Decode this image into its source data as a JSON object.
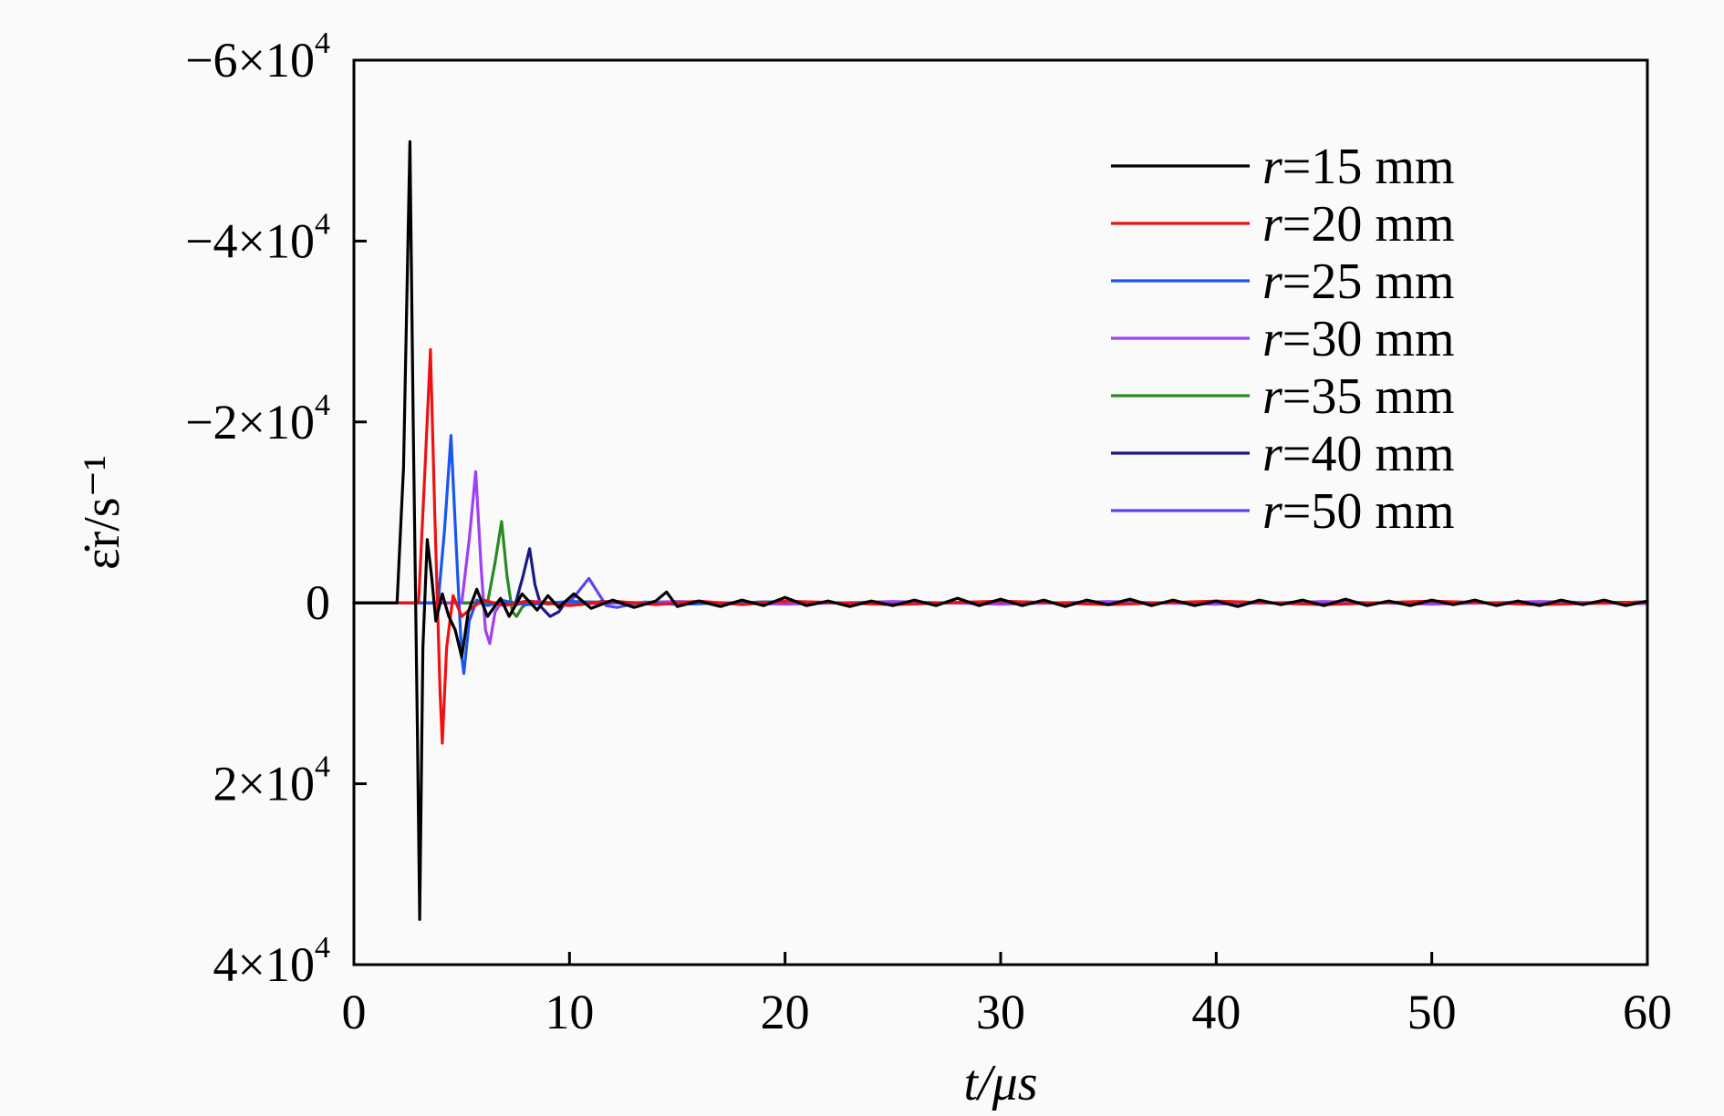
{
  "chart_data": {
    "type": "line",
    "xlabel": "t/μs",
    "ylabel": "ε̇r/s⁻¹",
    "xlim": [
      0,
      60
    ],
    "ylim": [
      40000,
      -60000
    ],
    "y_inverted": true,
    "grid": false,
    "legend_position": "top-right",
    "x_ticks": [
      "0",
      "10",
      "20",
      "30",
      "40",
      "50",
      "60"
    ],
    "y_ticks": [
      {
        "value": -60000,
        "mantissa": "−6×10",
        "exp": "4"
      },
      {
        "value": -40000,
        "mantissa": "−4×10",
        "exp": "4"
      },
      {
        "value": -20000,
        "mantissa": "−2×10",
        "exp": "4"
      },
      {
        "value": 0,
        "mantissa": "0",
        "exp": ""
      },
      {
        "value": 20000,
        "mantissa": "2×10",
        "exp": "4"
      },
      {
        "value": 40000,
        "mantissa": "4×10",
        "exp": "4"
      }
    ],
    "series": [
      {
        "name": "r=15 mm",
        "r_value": "r",
        "rest": "=15 mm",
        "color": "#000000",
        "points": [
          [
            0,
            0
          ],
          [
            2.0,
            0
          ],
          [
            2.3,
            -15000
          ],
          [
            2.6,
            -51000
          ],
          [
            2.75,
            -20000
          ],
          [
            2.95,
            15000
          ],
          [
            3.05,
            35000
          ],
          [
            3.2,
            5000
          ],
          [
            3.4,
            -7000
          ],
          [
            3.6,
            -3000
          ],
          [
            3.8,
            2000
          ],
          [
            4.1,
            -1000
          ],
          [
            4.4,
            1500
          ],
          [
            4.7,
            3000
          ],
          [
            5.0,
            6000
          ],
          [
            5.3,
            1000
          ],
          [
            5.7,
            -1500
          ],
          [
            6.2,
            1500
          ],
          [
            6.8,
            -500
          ],
          [
            7.2,
            1500
          ],
          [
            7.8,
            -1000
          ],
          [
            8.5,
            800
          ],
          [
            9.0,
            -800
          ],
          [
            9.5,
            500
          ],
          [
            10.2,
            -1000
          ],
          [
            11.0,
            600
          ],
          [
            12.0,
            -300
          ],
          [
            13.0,
            500
          ],
          [
            14.0,
            -200
          ],
          [
            14.5,
            -1200
          ],
          [
            15.0,
            400
          ],
          [
            16.0,
            -200
          ],
          [
            17.0,
            400
          ],
          [
            18.0,
            -300
          ],
          [
            19.0,
            300
          ],
          [
            20.0,
            -600
          ],
          [
            21.0,
            300
          ],
          [
            22.0,
            -200
          ],
          [
            23.0,
            400
          ],
          [
            24.0,
            -200
          ],
          [
            25.0,
            300
          ],
          [
            26.0,
            -300
          ],
          [
            27.0,
            300
          ],
          [
            28.0,
            -500
          ],
          [
            29.0,
            300
          ],
          [
            30.0,
            -400
          ],
          [
            31.0,
            300
          ],
          [
            32.0,
            -300
          ],
          [
            33.0,
            400
          ],
          [
            34.0,
            -300
          ],
          [
            35.0,
            200
          ],
          [
            36.0,
            -400
          ],
          [
            37.0,
            300
          ],
          [
            38.0,
            -300
          ],
          [
            39.0,
            300
          ],
          [
            40.0,
            -200
          ],
          [
            41.0,
            400
          ],
          [
            42.0,
            -300
          ],
          [
            43.0,
            200
          ],
          [
            44.0,
            -300
          ],
          [
            45.0,
            300
          ],
          [
            46.0,
            -400
          ],
          [
            47.0,
            300
          ],
          [
            48.0,
            -200
          ],
          [
            49.0,
            300
          ],
          [
            50.0,
            -300
          ],
          [
            51.0,
            200
          ],
          [
            52.0,
            -300
          ],
          [
            53.0,
            300
          ],
          [
            54.0,
            -200
          ],
          [
            55.0,
            300
          ],
          [
            56.0,
            -300
          ],
          [
            57.0,
            200
          ],
          [
            58.0,
            -300
          ],
          [
            59.0,
            300
          ],
          [
            60.0,
            -200
          ]
        ]
      },
      {
        "name": "r=20 mm",
        "r_value": "r",
        "rest": "=20 mm",
        "color": "#ee1111",
        "points": [
          [
            0,
            0
          ],
          [
            3.0,
            0
          ],
          [
            3.3,
            -15000
          ],
          [
            3.55,
            -28000
          ],
          [
            3.75,
            -10000
          ],
          [
            4.0,
            10000
          ],
          [
            4.1,
            15500
          ],
          [
            4.3,
            5000
          ],
          [
            4.6,
            -800
          ],
          [
            5.0,
            1500
          ],
          [
            5.5,
            500
          ],
          [
            6.0,
            -300
          ],
          [
            7.0,
            300
          ],
          [
            8.0,
            -200
          ],
          [
            10.0,
            300
          ],
          [
            12.0,
            -200
          ],
          [
            14.0,
            200
          ],
          [
            16.0,
            -200
          ],
          [
            18.0,
            200
          ],
          [
            20.0,
            -200
          ],
          [
            25.0,
            200
          ],
          [
            30.0,
            -200
          ],
          [
            35.0,
            200
          ],
          [
            40.0,
            -200
          ],
          [
            45.0,
            200
          ],
          [
            50.0,
            -200
          ],
          [
            55.0,
            200
          ],
          [
            60.0,
            -100
          ]
        ]
      },
      {
        "name": "r=25 mm",
        "r_value": "r",
        "rest": "=25 mm",
        "color": "#1a55ee",
        "points": [
          [
            0,
            0
          ],
          [
            3.9,
            0
          ],
          [
            4.2,
            -8000
          ],
          [
            4.5,
            -18500
          ],
          [
            4.75,
            -6000
          ],
          [
            5.0,
            6000
          ],
          [
            5.1,
            7800
          ],
          [
            5.35,
            2000
          ],
          [
            5.7,
            -300
          ],
          [
            6.2,
            300
          ],
          [
            7.0,
            -200
          ],
          [
            8.0,
            200
          ],
          [
            10.0,
            -150
          ],
          [
            15.0,
            150
          ],
          [
            20.0,
            -150
          ],
          [
            25.0,
            150
          ],
          [
            30.0,
            -150
          ],
          [
            35.0,
            150
          ],
          [
            40.0,
            -150
          ],
          [
            45.0,
            150
          ],
          [
            50.0,
            -150
          ],
          [
            55.0,
            150
          ],
          [
            60.0,
            -100
          ]
        ]
      },
      {
        "name": "r=30 mm",
        "r_value": "r",
        "rest": "=30 mm",
        "color": "#a040f0",
        "points": [
          [
            0,
            0
          ],
          [
            5.0,
            0
          ],
          [
            5.35,
            -7000
          ],
          [
            5.65,
            -14500
          ],
          [
            5.9,
            -4000
          ],
          [
            6.1,
            3000
          ],
          [
            6.3,
            4500
          ],
          [
            6.55,
            1000
          ],
          [
            6.9,
            -300
          ],
          [
            7.5,
            200
          ],
          [
            8.5,
            -150
          ],
          [
            10.0,
            150
          ],
          [
            15.0,
            -150
          ],
          [
            20.0,
            150
          ],
          [
            25.0,
            -150
          ],
          [
            30.0,
            150
          ],
          [
            35.0,
            -150
          ],
          [
            40.0,
            150
          ],
          [
            45.0,
            -150
          ],
          [
            50.0,
            150
          ],
          [
            55.0,
            -150
          ],
          [
            60.0,
            100
          ]
        ]
      },
      {
        "name": "r=35 mm",
        "r_value": "r",
        "rest": "=35 mm",
        "color": "#2a8a20",
        "points": [
          [
            0,
            0
          ],
          [
            6.2,
            0
          ],
          [
            6.55,
            -4500
          ],
          [
            6.85,
            -9000
          ],
          [
            7.1,
            -3000
          ],
          [
            7.35,
            1000
          ],
          [
            7.55,
            1500
          ],
          [
            7.8,
            500
          ],
          [
            8.2,
            -200
          ],
          [
            9.0,
            150
          ],
          [
            10.0,
            -150
          ],
          [
            15.0,
            150
          ],
          [
            20.0,
            -150
          ],
          [
            25.0,
            150
          ],
          [
            30.0,
            -150
          ],
          [
            35.0,
            150
          ],
          [
            40.0,
            -150
          ],
          [
            45.0,
            150
          ],
          [
            50.0,
            -150
          ],
          [
            55.0,
            150
          ],
          [
            60.0,
            -100
          ]
        ]
      },
      {
        "name": "r=40 mm",
        "r_value": "r",
        "rest": "=40 mm",
        "color": "#1a1a80",
        "points": [
          [
            0,
            0
          ],
          [
            7.5,
            0
          ],
          [
            7.85,
            -3000
          ],
          [
            8.15,
            -6000
          ],
          [
            8.4,
            -2000
          ],
          [
            8.7,
            500
          ],
          [
            9.1,
            1500
          ],
          [
            9.5,
            1000
          ],
          [
            9.9,
            -300
          ],
          [
            10.5,
            200
          ],
          [
            11.5,
            -150
          ],
          [
            15.0,
            150
          ],
          [
            20.0,
            -150
          ],
          [
            25.0,
            150
          ],
          [
            30.0,
            -150
          ],
          [
            35.0,
            150
          ],
          [
            40.0,
            -150
          ],
          [
            45.0,
            150
          ],
          [
            50.0,
            -150
          ],
          [
            55.0,
            150
          ],
          [
            60.0,
            -100
          ]
        ]
      },
      {
        "name": "r=50 mm",
        "r_value": "r",
        "rest": "=50 mm",
        "color": "#5b46ee",
        "points": [
          [
            0,
            0
          ],
          [
            10.0,
            0
          ],
          [
            10.5,
            -1500
          ],
          [
            10.9,
            -2700
          ],
          [
            11.3,
            -1200
          ],
          [
            11.7,
            300
          ],
          [
            12.2,
            500
          ],
          [
            12.8,
            200
          ],
          [
            13.5,
            -100
          ],
          [
            15.0,
            100
          ],
          [
            20.0,
            -100
          ],
          [
            25.0,
            100
          ],
          [
            30.0,
            -100
          ],
          [
            35.0,
            100
          ],
          [
            40.0,
            -100
          ],
          [
            45.0,
            100
          ],
          [
            50.0,
            -100
          ],
          [
            55.0,
            100
          ],
          [
            60.0,
            0
          ]
        ]
      }
    ]
  }
}
